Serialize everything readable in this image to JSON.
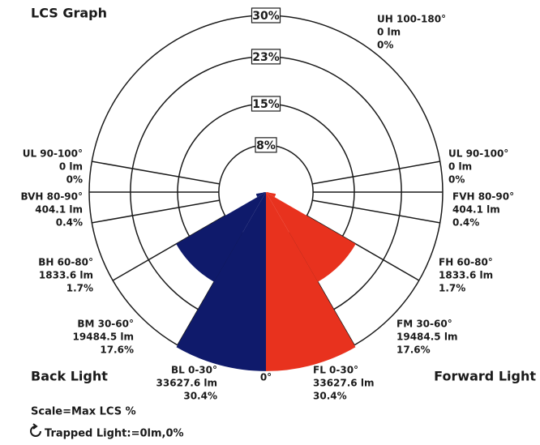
{
  "chart_data": {
    "type": "polar",
    "title": "LCS Graph",
    "rlim": [
      0,
      30
    ],
    "rticks": [
      {
        "value": 8,
        "label": "8%"
      },
      {
        "value": 15,
        "label": "15%"
      },
      {
        "value": 23,
        "label": "23%"
      },
      {
        "value": 30,
        "label": "30%"
      }
    ],
    "bottom_label": "0°",
    "scale_note": "Scale=Max LCS %",
    "trapped_light": "Trapped Light:=0lm,0%",
    "series": [
      {
        "name": "Back Light",
        "side": "left",
        "color": "#0f1a6b",
        "zones": [
          {
            "name": "BL 0-30°",
            "angles": [
              0,
              30
            ],
            "lumens": "33627.6 lm",
            "value": 30.4,
            "value_label": "30.4%"
          },
          {
            "name": "BM 30-60°",
            "angles": [
              30,
              60
            ],
            "lumens": "19484.5 lm",
            "value": 17.6,
            "value_label": "17.6%"
          },
          {
            "name": "BH 60-80°",
            "angles": [
              60,
              80
            ],
            "lumens": "1833.6 lm",
            "value": 1.7,
            "value_label": "1.7%"
          },
          {
            "name": "BVH 80-90°",
            "angles": [
              80,
              90
            ],
            "lumens": "404.1 lm",
            "value": 0.4,
            "value_label": "0.4%"
          },
          {
            "name": "UL 90-100°",
            "angles": [
              90,
              100
            ],
            "lumens": "0 lm",
            "value": 0,
            "value_label": "0%"
          }
        ]
      },
      {
        "name": "Forward Light",
        "side": "right",
        "color": "#e8321e",
        "zones": [
          {
            "name": "FL 0-30°",
            "angles": [
              0,
              30
            ],
            "lumens": "33627.6 lm",
            "value": 30.4,
            "value_label": "30.4%"
          },
          {
            "name": "FM 30-60°",
            "angles": [
              30,
              60
            ],
            "lumens": "19484.5 lm",
            "value": 17.6,
            "value_label": "17.6%"
          },
          {
            "name": "FH 60-80°",
            "angles": [
              60,
              80
            ],
            "lumens": "1833.6 lm",
            "value": 1.7,
            "value_label": "1.7%"
          },
          {
            "name": "FVH 80-90°",
            "angles": [
              80,
              90
            ],
            "lumens": "404.1 lm",
            "value": 0.4,
            "value_label": "0.4%"
          },
          {
            "name": "UL 90-100°",
            "angles": [
              90,
              100
            ],
            "lumens": "0 lm",
            "value": 0,
            "value_label": "0%"
          },
          {
            "name": "UH 100-180°",
            "angles": [
              100,
              180
            ],
            "lumens": "0 lm",
            "value": 0,
            "value_label": "0%"
          }
        ]
      }
    ]
  }
}
